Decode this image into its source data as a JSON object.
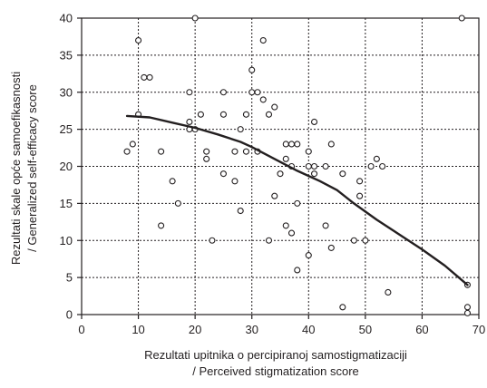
{
  "chart_data": {
    "type": "scatter",
    "xlabel": [
      "Rezultati upitnika o percipiranoj samostigmatizaciji",
      "/ Perceived stigmatization score"
    ],
    "ylabel": [
      "Rezultati skale opće samoefikasnosti",
      "/ Generalized self-efficacy score"
    ],
    "xlim": [
      0,
      70
    ],
    "ylim": [
      0,
      40
    ],
    "xticks": [
      0,
      10,
      20,
      30,
      40,
      50,
      60,
      70
    ],
    "yticks": [
      0,
      5,
      10,
      15,
      20,
      25,
      30,
      35,
      40
    ],
    "grid": true,
    "colors": {
      "marker": "#231f20",
      "line": "#231f20",
      "grid": "#231f20"
    },
    "points": [
      [
        20,
        40
      ],
      [
        67,
        40
      ],
      [
        10,
        37
      ],
      [
        32,
        37
      ],
      [
        11,
        32
      ],
      [
        12,
        32
      ],
      [
        30,
        33
      ],
      [
        19,
        30
      ],
      [
        25,
        30
      ],
      [
        30,
        30
      ],
      [
        31,
        30
      ],
      [
        32,
        29
      ],
      [
        34,
        28
      ],
      [
        10,
        27
      ],
      [
        21,
        27
      ],
      [
        25,
        27
      ],
      [
        29,
        27
      ],
      [
        33,
        27
      ],
      [
        41,
        26
      ],
      [
        19,
        26
      ],
      [
        19,
        25
      ],
      [
        20,
        25
      ],
      [
        28,
        25
      ],
      [
        36,
        23
      ],
      [
        37,
        23
      ],
      [
        38,
        23
      ],
      [
        44,
        23
      ],
      [
        9,
        23
      ],
      [
        8,
        22
      ],
      [
        14,
        22
      ],
      [
        22,
        22
      ],
      [
        27,
        22
      ],
      [
        29,
        22
      ],
      [
        31,
        22
      ],
      [
        40,
        22
      ],
      [
        22,
        21
      ],
      [
        36,
        21
      ],
      [
        52,
        21
      ],
      [
        37,
        20
      ],
      [
        40,
        20
      ],
      [
        41,
        20
      ],
      [
        43,
        20
      ],
      [
        51,
        20
      ],
      [
        53,
        20
      ],
      [
        25,
        19
      ],
      [
        35,
        19
      ],
      [
        41,
        19
      ],
      [
        46,
        19
      ],
      [
        16,
        18
      ],
      [
        27,
        18
      ],
      [
        49,
        18
      ],
      [
        34,
        16
      ],
      [
        49,
        16
      ],
      [
        17,
        15
      ],
      [
        38,
        15
      ],
      [
        28,
        14
      ],
      [
        14,
        12
      ],
      [
        36,
        12
      ],
      [
        43,
        12
      ],
      [
        23,
        10
      ],
      [
        33,
        10
      ],
      [
        37,
        11
      ],
      [
        48,
        10
      ],
      [
        50,
        10
      ],
      [
        44,
        9
      ],
      [
        40,
        8
      ],
      [
        38,
        6
      ],
      [
        68,
        4
      ],
      [
        54,
        3
      ],
      [
        46,
        1
      ],
      [
        68,
        1
      ],
      [
        68,
        0.2
      ]
    ],
    "trend": [
      [
        8,
        26.8
      ],
      [
        12,
        26.6
      ],
      [
        16,
        25.9
      ],
      [
        20,
        25.2
      ],
      [
        24,
        24.3
      ],
      [
        28,
        23.3
      ],
      [
        30,
        22.6
      ],
      [
        34,
        21
      ],
      [
        38,
        19.4
      ],
      [
        42,
        18
      ],
      [
        45,
        16.8
      ],
      [
        48,
        15
      ],
      [
        52,
        12.8
      ],
      [
        56,
        10.8
      ],
      [
        60,
        8.8
      ],
      [
        64,
        6.6
      ],
      [
        68,
        4
      ]
    ]
  }
}
